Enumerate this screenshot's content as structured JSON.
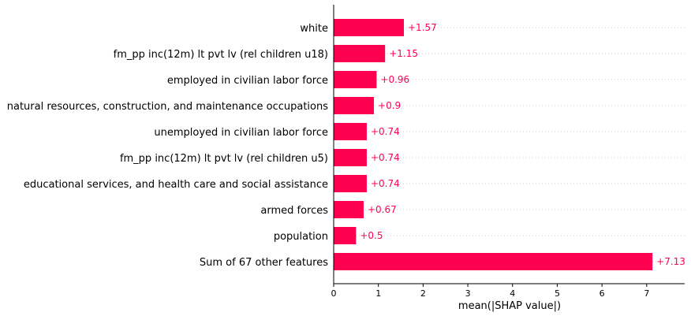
{
  "chart_data": {
    "type": "bar",
    "orientation": "horizontal",
    "categories": [
      "white",
      "fm_pp inc(12m) lt pvt lv (rel children u18)",
      "employed in civilian labor force",
      "natural resources, construction, and maintenance occupations",
      "unemployed  in civilian labor force",
      "fm_pp inc(12m) lt pvt lv (rel children u5)",
      "educational services, and health care and social assistance",
      "armed forces",
      "population",
      "Sum of 67 other features"
    ],
    "values": [
      1.57,
      1.15,
      0.96,
      0.9,
      0.74,
      0.74,
      0.74,
      0.67,
      0.5,
      7.13
    ],
    "value_labels": [
      "+1.57",
      "+1.15",
      "+0.96",
      "+0.9",
      "+0.74",
      "+0.74",
      "+0.74",
      "+0.67",
      "+0.5",
      "+7.13"
    ],
    "xlabel": "mean(|SHAP value|)",
    "xlim": [
      0,
      7.85
    ],
    "xticks": [
      0,
      1,
      2,
      3,
      4,
      5,
      6,
      7
    ],
    "grid": "horizontal dotted",
    "bar_color": "#ff0051",
    "label_color": "#ff0051"
  }
}
